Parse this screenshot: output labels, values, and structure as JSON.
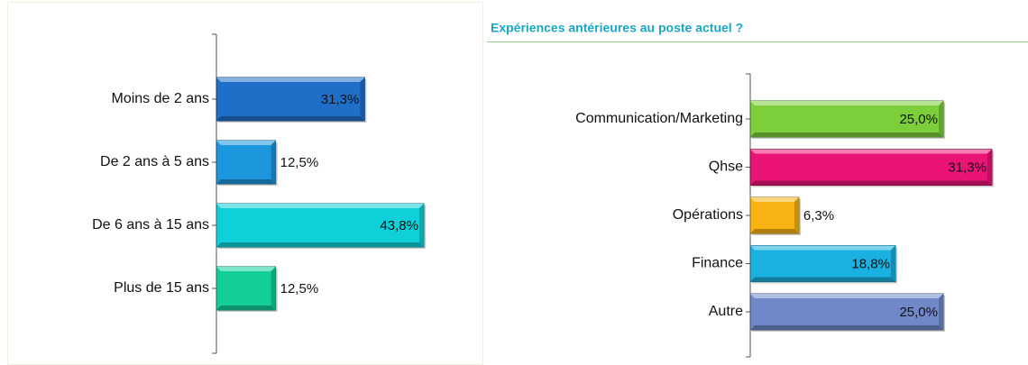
{
  "chart_data": [
    {
      "type": "bar",
      "categories": [
        "Moins de 2 ans",
        "De 2 ans à 5 ans",
        "De 6 ans à 15 ans",
        "Plus de 15 ans"
      ],
      "values": [
        31.3,
        12.5,
        43.8,
        12.5
      ],
      "value_labels": [
        "31,3%",
        "12,5%",
        "43,8%",
        "12,5%"
      ],
      "colors": [
        "#1f6fc9",
        "#1c96dc",
        "#0fd0d9",
        "#12cf9a"
      ]
    },
    {
      "type": "bar",
      "title": "Expériences antérieures au poste actuel ?",
      "categories": [
        "Communication/Marketing",
        "Qhse",
        "Opérations",
        "Finance",
        "Autre"
      ],
      "values": [
        25.0,
        31.3,
        6.3,
        18.8,
        25.0
      ],
      "value_labels": [
        "25,0%",
        "31,3%",
        "6,3%",
        "18,8%",
        "25,0%"
      ],
      "colors": [
        "#7ccf3a",
        "#ea1477",
        "#f8b415",
        "#1ab1e0",
        "#7088c8"
      ]
    }
  ]
}
